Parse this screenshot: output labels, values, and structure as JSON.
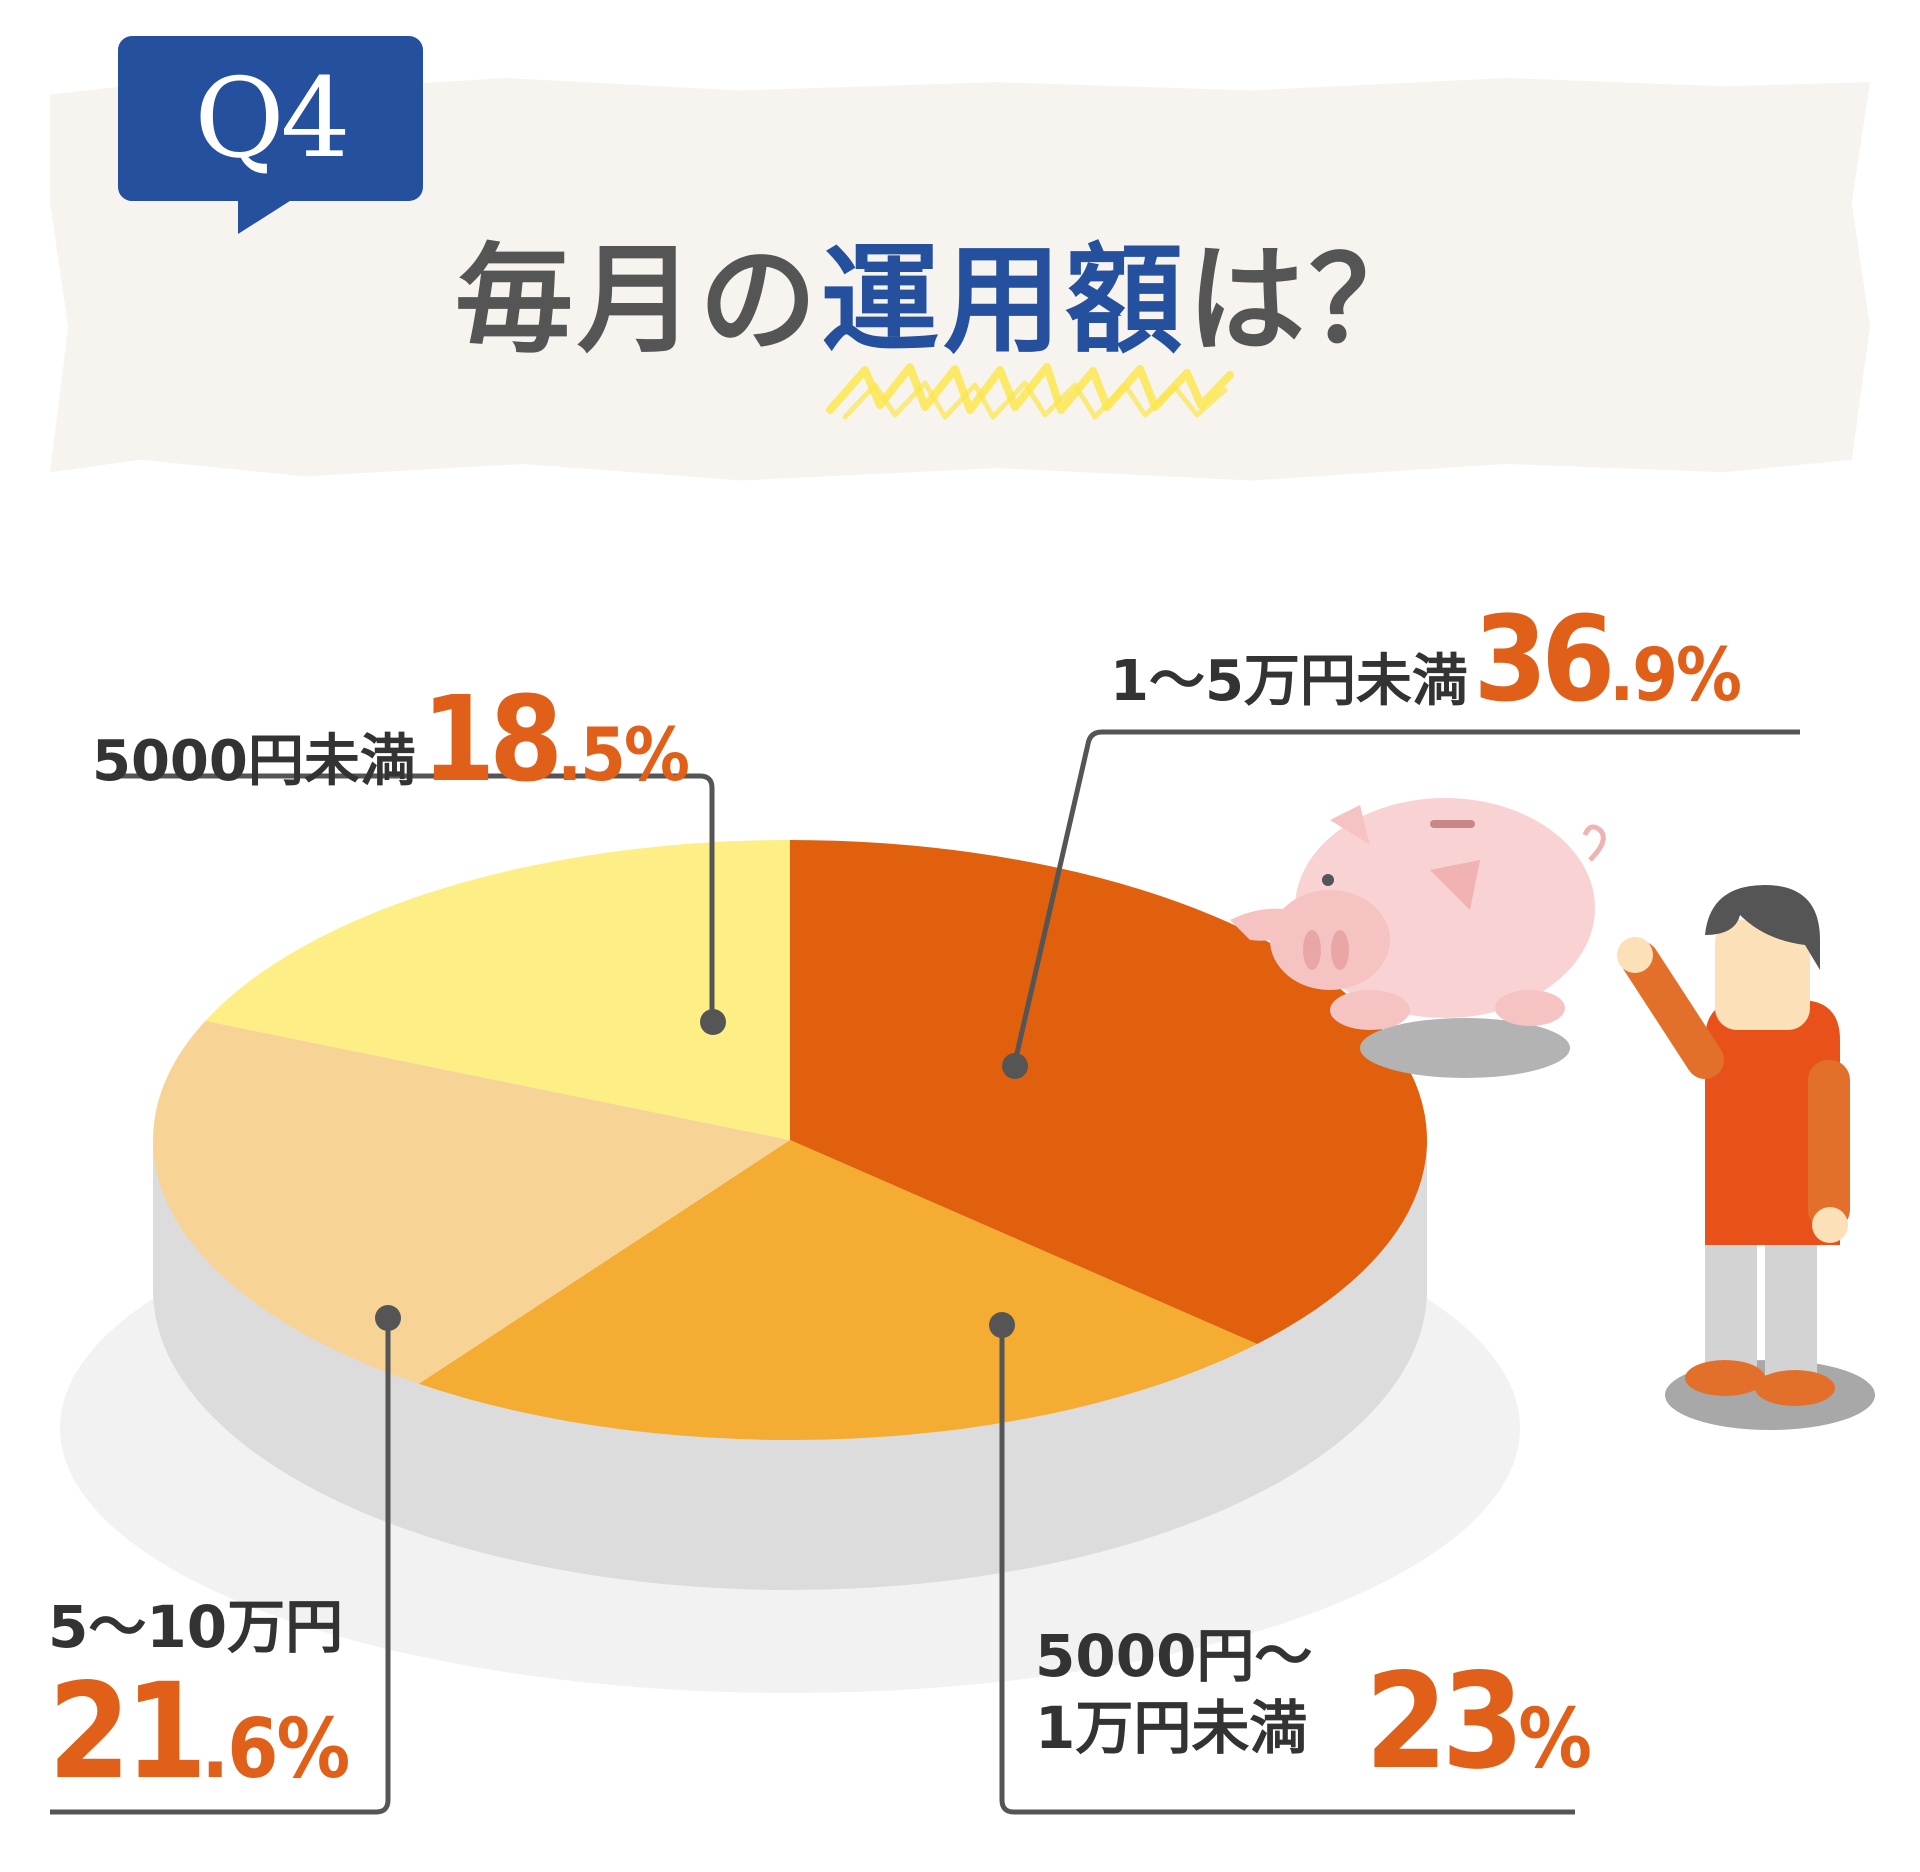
{
  "header": {
    "badge": "Q4",
    "title_pre": "毎月の",
    "title_highlight": "運用額",
    "title_post": "は？"
  },
  "labels": {
    "a": {
      "name": "5000円未満",
      "pct_main": "18",
      "pct_small": ".5%"
    },
    "b": {
      "name": "1〜5万円未満",
      "pct_main": "36",
      "pct_small": ".9%"
    },
    "c": {
      "name": "5〜10万円",
      "pct_main": "21",
      "pct_small": ".6%"
    },
    "d": {
      "name_line1": "5000円〜",
      "name_line2": "1万円未満",
      "pct_main": "23",
      "pct_small": "%"
    }
  },
  "chart_data": {
    "type": "pie",
    "categories": [
      "5000円未満",
      "1〜5万円未満",
      "5000円〜1万円未満",
      "5〜10万円"
    ],
    "values": [
      18.5,
      36.9,
      23,
      21.6
    ],
    "unit": "%",
    "colors": [
      "#fdee85",
      "#e0600e",
      "#f4ac32",
      "#f8d396"
    ]
  }
}
